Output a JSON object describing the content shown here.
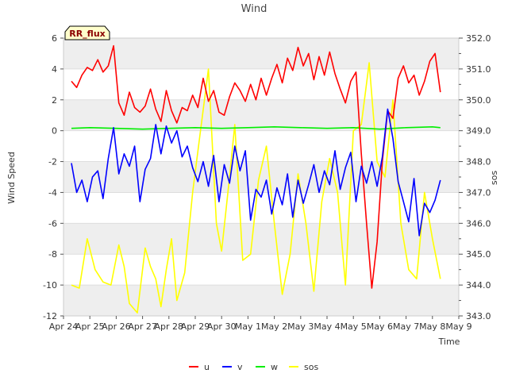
{
  "chart_data": {
    "type": "line",
    "title": "Wind",
    "badge": "RR_flux",
    "xlabel": "Time",
    "ylabel": "Wind Speed",
    "y2label": "sos",
    "x_ticks": [
      "Apr 24",
      "Apr 25",
      "Apr 26",
      "Apr 27",
      "Apr 28",
      "Apr 29",
      "Apr 30",
      "May 1",
      "May 2",
      "May 3",
      "May 4",
      "May 5",
      "May 6",
      "May 7",
      "May 8",
      "May 9"
    ],
    "x_range_days": [
      0,
      15
    ],
    "ylim": [
      -12,
      6
    ],
    "y_ticks": [
      "-12",
      "-10",
      "-8",
      "-6",
      "-4",
      "-2",
      "0",
      "2",
      "4",
      "6"
    ],
    "y2lim": [
      343.0,
      352.0
    ],
    "y2_ticks": [
      "343.0",
      "344.0",
      "345.0",
      "346.0",
      "347.0",
      "348.0",
      "349.0",
      "350.0",
      "351.0",
      "352.0"
    ],
    "grid": true,
    "legend_position": "bottom-center",
    "colors": {
      "u": "#ff0000",
      "v": "#0000ff",
      "w": "#00ee00",
      "sos": "#ffff00",
      "band": "#eeeeee",
      "badge_bg": "#ffffcc"
    },
    "series": [
      {
        "name": "u",
        "axis": "left",
        "x": [
          0.3,
          0.5,
          0.7,
          0.9,
          1.1,
          1.3,
          1.5,
          1.7,
          1.9,
          2.1,
          2.3,
          2.5,
          2.7,
          2.9,
          3.1,
          3.3,
          3.5,
          3.7,
          3.9,
          4.1,
          4.3,
          4.5,
          4.7,
          4.9,
          5.1,
          5.3,
          5.5,
          5.7,
          5.9,
          6.1,
          6.3,
          6.5,
          6.7,
          6.9,
          7.1,
          7.3,
          7.5,
          7.7,
          7.9,
          8.1,
          8.3,
          8.5,
          8.7,
          8.9,
          9.1,
          9.3,
          9.5,
          9.7,
          9.9,
          10.1,
          10.3,
          10.5,
          10.7,
          10.9,
          11.1,
          11.3,
          11.5,
          11.7,
          11.9,
          12.1,
          12.3,
          12.5,
          12.7,
          12.9,
          13.1,
          13.3,
          13.5,
          13.7,
          13.9,
          14.1,
          14.3
        ],
        "values": [
          3.2,
          2.8,
          3.6,
          4.1,
          3.9,
          4.6,
          3.8,
          4.2,
          5.5,
          1.8,
          1.0,
          2.5,
          1.5,
          1.2,
          1.6,
          2.7,
          1.4,
          0.6,
          2.6,
          1.3,
          0.5,
          1.5,
          1.3,
          2.3,
          1.5,
          3.4,
          1.9,
          2.6,
          1.2,
          1.0,
          2.2,
          3.1,
          2.6,
          1.9,
          3.0,
          2.0,
          3.4,
          2.3,
          3.4,
          4.3,
          3.1,
          4.7,
          3.9,
          5.4,
          4.2,
          5.0,
          3.3,
          4.8,
          3.6,
          5.1,
          3.7,
          2.7,
          1.8,
          3.2,
          3.8,
          -1.5,
          -6.0,
          -10.2,
          -7.2,
          -2.0,
          1.3,
          0.8,
          3.4,
          4.2,
          3.1,
          3.6,
          2.3,
          3.2,
          4.5,
          5.0,
          2.5
        ]
      },
      {
        "name": "v",
        "axis": "left",
        "x": [
          0.3,
          0.5,
          0.7,
          0.9,
          1.1,
          1.3,
          1.5,
          1.7,
          1.9,
          2.1,
          2.3,
          2.5,
          2.7,
          2.9,
          3.1,
          3.3,
          3.5,
          3.7,
          3.9,
          4.1,
          4.3,
          4.5,
          4.7,
          4.9,
          5.1,
          5.3,
          5.5,
          5.7,
          5.9,
          6.1,
          6.3,
          6.5,
          6.7,
          6.9,
          7.1,
          7.3,
          7.5,
          7.7,
          7.9,
          8.1,
          8.3,
          8.5,
          8.7,
          8.9,
          9.1,
          9.3,
          9.5,
          9.7,
          9.9,
          10.1,
          10.3,
          10.5,
          10.7,
          10.9,
          11.1,
          11.3,
          11.5,
          11.7,
          11.9,
          12.1,
          12.3,
          12.5,
          12.7,
          12.9,
          13.1,
          13.3,
          13.5,
          13.7,
          13.9,
          14.1,
          14.3
        ],
        "values": [
          -2.1,
          -4.0,
          -3.2,
          -4.6,
          -3.0,
          -2.6,
          -4.4,
          -1.8,
          0.2,
          -2.8,
          -1.5,
          -2.3,
          -1.0,
          -4.6,
          -2.5,
          -1.8,
          0.4,
          -1.5,
          0.3,
          -0.8,
          0.0,
          -1.7,
          -1.0,
          -2.4,
          -3.3,
          -2.0,
          -3.6,
          -1.6,
          -4.6,
          -2.2,
          -3.4,
          -1.0,
          -2.6,
          -1.3,
          -5.8,
          -3.8,
          -4.3,
          -3.2,
          -5.4,
          -3.7,
          -4.8,
          -2.8,
          -5.6,
          -3.2,
          -4.7,
          -3.5,
          -2.2,
          -4.0,
          -2.6,
          -3.5,
          -1.3,
          -3.8,
          -2.4,
          -1.4,
          -4.6,
          -2.3,
          -3.4,
          -2.0,
          -3.6,
          -1.7,
          1.4,
          -0.5,
          -3.3,
          -4.6,
          -5.9,
          -3.1,
          -6.8,
          -4.7,
          -5.3,
          -4.5,
          -3.2
        ]
      },
      {
        "name": "w",
        "axis": "left",
        "x": [
          0.3,
          1.0,
          2.0,
          3.0,
          4.0,
          5.0,
          6.0,
          7.0,
          8.0,
          9.0,
          10.0,
          11.0,
          12.0,
          13.0,
          14.0,
          14.3
        ],
        "values": [
          0.15,
          0.2,
          0.15,
          0.1,
          0.15,
          0.2,
          0.15,
          0.2,
          0.25,
          0.2,
          0.15,
          0.2,
          0.1,
          0.2,
          0.25,
          0.2
        ]
      },
      {
        "name": "sos",
        "axis": "right",
        "x": [
          0.3,
          0.6,
          0.9,
          1.2,
          1.5,
          1.8,
          2.1,
          2.3,
          2.5,
          2.8,
          3.1,
          3.3,
          3.5,
          3.7,
          3.9,
          4.1,
          4.3,
          4.6,
          4.9,
          5.2,
          5.5,
          5.8,
          6.0,
          6.3,
          6.5,
          6.8,
          7.1,
          7.4,
          7.7,
          8.0,
          8.3,
          8.6,
          8.9,
          9.2,
          9.5,
          9.8,
          10.1,
          10.4,
          10.7,
          11.0,
          11.3,
          11.6,
          11.9,
          12.2,
          12.5,
          12.8,
          13.1,
          13.4,
          13.7,
          14.0,
          14.3
        ],
        "values": [
          344.0,
          343.9,
          345.5,
          344.5,
          344.1,
          344.0,
          345.3,
          344.6,
          343.4,
          343.1,
          345.2,
          344.6,
          344.2,
          343.3,
          344.5,
          345.5,
          343.5,
          344.4,
          347.0,
          349.0,
          351.0,
          346.0,
          345.1,
          347.5,
          349.2,
          344.8,
          345.0,
          347.4,
          348.5,
          346.0,
          343.7,
          345.0,
          347.6,
          346.0,
          343.8,
          346.7,
          348.1,
          347.0,
          344.0,
          349.0,
          349.2,
          351.2,
          348.0,
          347.5,
          350.0,
          346.0,
          344.5,
          344.2,
          347.0,
          345.5,
          344.2
        ]
      }
    ]
  }
}
